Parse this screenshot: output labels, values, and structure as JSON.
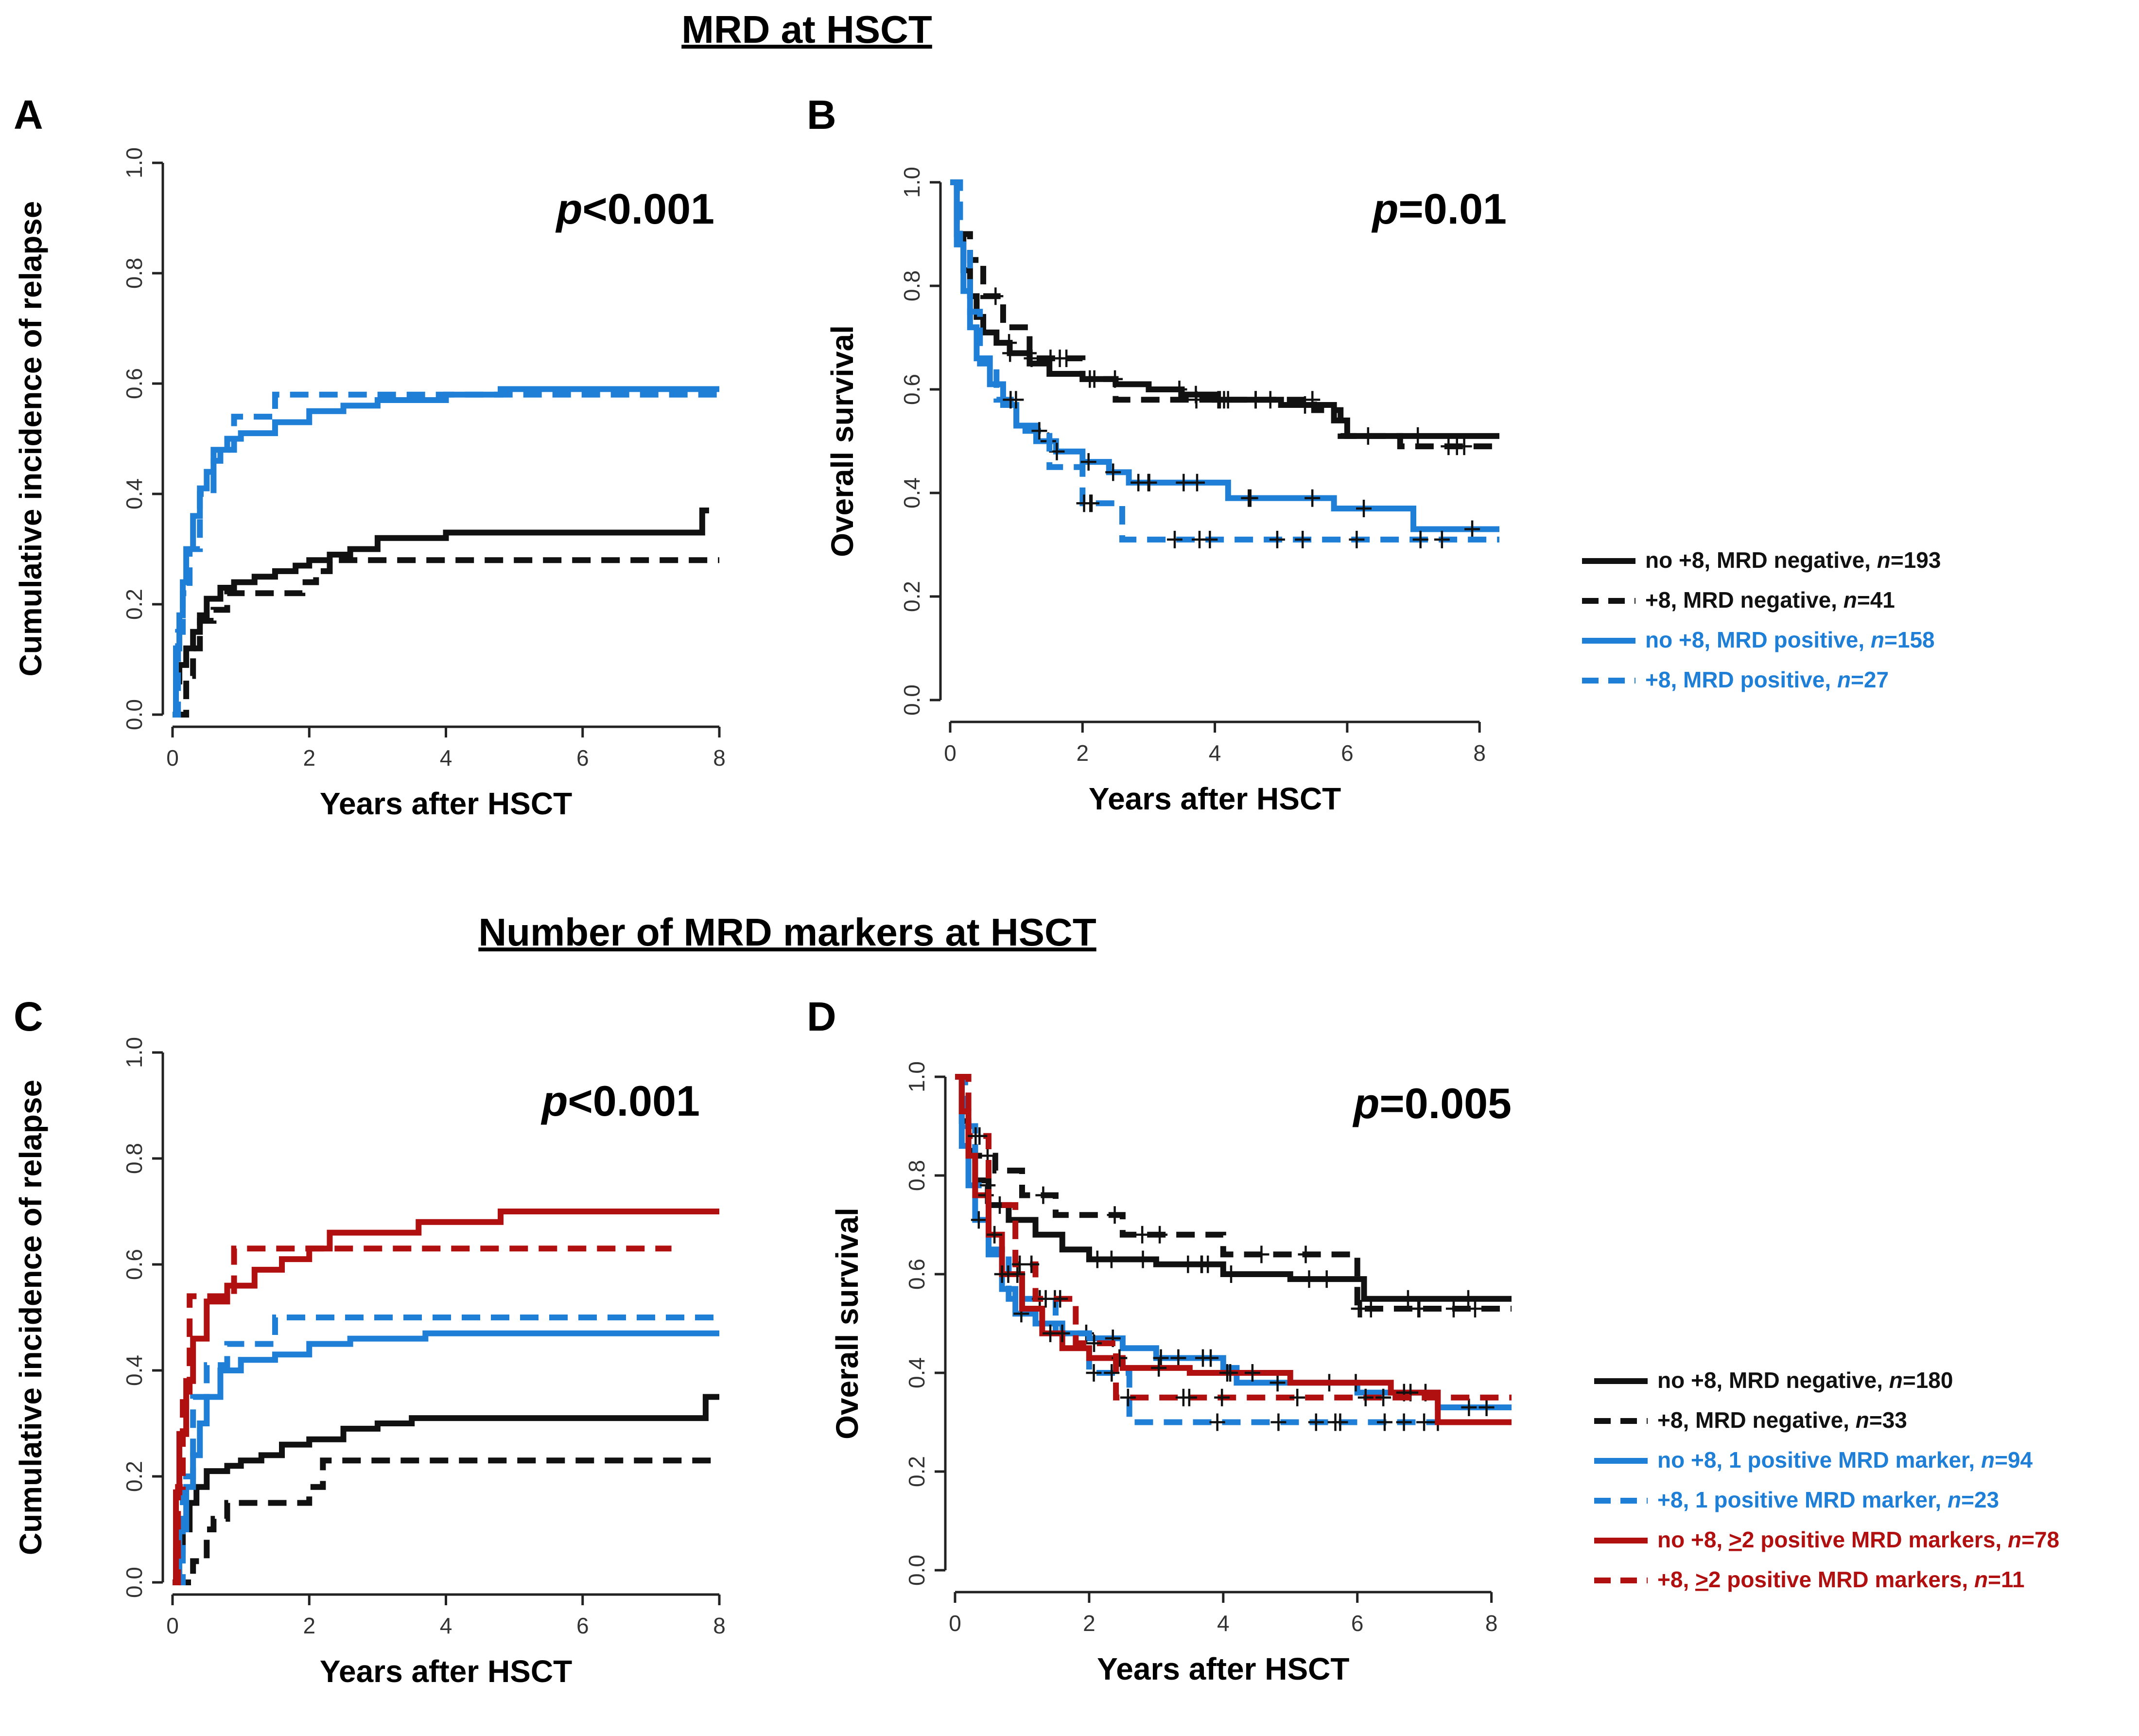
{
  "sections": {
    "top_title": "MRD at HSCT",
    "bottom_title": "Number of MRD markers at HSCT"
  },
  "colors": {
    "black": "#111111",
    "blue": "#1f7fd6",
    "red": "#b01010"
  },
  "legend_top": [
    {
      "parts": [
        "no +8, MRD negative, ",
        "n",
        "=193"
      ],
      "color": "black",
      "dash": false
    },
    {
      "parts": [
        "+8, MRD negative, ",
        "n",
        "=41"
      ],
      "color": "black",
      "dash": true
    },
    {
      "parts": [
        "no +8, MRD positive, ",
        "n",
        "=158"
      ],
      "color": "blue",
      "dash": false
    },
    {
      "parts": [
        "+8, MRD positive, ",
        "n",
        "=27"
      ],
      "color": "blue",
      "dash": true
    }
  ],
  "legend_bottom": [
    {
      "parts": [
        "no +8, MRD negative, ",
        "n",
        "=180"
      ],
      "color": "black",
      "dash": false
    },
    {
      "parts": [
        "+8, MRD negative, ",
        "n",
        "=33"
      ],
      "color": "black",
      "dash": true
    },
    {
      "parts": [
        "no +8, 1 positive MRD marker, ",
        "n",
        "=94"
      ],
      "color": "blue",
      "dash": false
    },
    {
      "parts": [
        "+8, 1 positive MRD marker, ",
        "n",
        "=23"
      ],
      "color": "blue",
      "dash": true
    },
    {
      "parts": [
        "no +8, ",
        ">",
        "2 positive MRD markers, ",
        "n",
        "=78"
      ],
      "color": "red",
      "dash": false
    },
    {
      "parts": [
        "+8, ",
        ">",
        "2 positive MRD markers, ",
        "n",
        "=11"
      ],
      "color": "red",
      "dash": true
    }
  ],
  "chart_data": [
    {
      "panel": "A",
      "type": "line",
      "step": true,
      "xlabel": "Years after HSCT",
      "ylabel": "Cumulative incidence of relapse",
      "pvalue": {
        "italic": "p",
        "rest": "<0.001"
      },
      "xlim": [
        0,
        8
      ],
      "ylim": [
        0,
        1
      ],
      "xticks": [
        "0",
        "2",
        "4",
        "6",
        "8"
      ],
      "yticks": [
        "0.0",
        "0.2",
        "0.4",
        "0.6",
        "0.8",
        "1.0"
      ],
      "series": [
        {
          "name": "no +8, MRD negative",
          "color": "black",
          "dash": false,
          "x": [
            0,
            0.05,
            0.1,
            0.2,
            0.3,
            0.4,
            0.5,
            0.7,
            0.9,
            1.2,
            1.5,
            1.8,
            2.0,
            2.3,
            2.6,
            3.0,
            3.5,
            4.0,
            5.0,
            7.75,
            7.85
          ],
          "y": [
            0,
            0.06,
            0.09,
            0.12,
            0.15,
            0.18,
            0.21,
            0.23,
            0.24,
            0.25,
            0.26,
            0.27,
            0.28,
            0.29,
            0.3,
            0.32,
            0.32,
            0.33,
            0.33,
            0.37,
            0.37
          ]
        },
        {
          "name": "+8, MRD negative",
          "color": "black",
          "dash": true,
          "x": [
            0,
            0.2,
            0.3,
            0.4,
            0.6,
            0.8,
            1.2,
            1.9,
            2.1,
            2.3,
            8.0
          ],
          "y": [
            0,
            0.07,
            0.12,
            0.17,
            0.19,
            0.22,
            0.22,
            0.24,
            0.26,
            0.28,
            0.28
          ]
        },
        {
          "name": "no +8, MRD positive",
          "color": "blue",
          "dash": false,
          "x": [
            0,
            0.05,
            0.1,
            0.15,
            0.2,
            0.3,
            0.4,
            0.5,
            0.6,
            0.7,
            0.8,
            1.0,
            1.5,
            2.0,
            2.5,
            3.0,
            4.0,
            4.8,
            8.0
          ],
          "y": [
            0,
            0.12,
            0.18,
            0.24,
            0.3,
            0.36,
            0.41,
            0.44,
            0.46,
            0.48,
            0.5,
            0.51,
            0.53,
            0.55,
            0.56,
            0.57,
            0.58,
            0.59,
            0.59
          ]
        },
        {
          "name": "+8, MRD positive",
          "color": "blue",
          "dash": true,
          "x": [
            0,
            0.08,
            0.15,
            0.25,
            0.4,
            0.6,
            0.9,
            1.5,
            8.0
          ],
          "y": [
            0,
            0.15,
            0.22,
            0.3,
            0.4,
            0.48,
            0.54,
            0.58,
            0.58
          ]
        }
      ]
    },
    {
      "panel": "B",
      "type": "line",
      "step": true,
      "xlabel": "Years after HSCT",
      "ylabel": "Overall survival",
      "pvalue": {
        "italic": "p",
        "rest": "=0.01"
      },
      "xlim": [
        0,
        8
      ],
      "ylim": [
        0,
        1
      ],
      "xticks": [
        "0",
        "2",
        "4",
        "6",
        "8"
      ],
      "yticks": [
        "0.0",
        "0.2",
        "0.4",
        "0.6",
        "0.8",
        "1.0"
      ],
      "series": [
        {
          "name": "no +8, MRD negative",
          "color": "black",
          "dash": false,
          "x": [
            0,
            0.1,
            0.2,
            0.3,
            0.4,
            0.5,
            0.7,
            0.9,
            1.2,
            1.5,
            2.0,
            2.5,
            3.0,
            3.5,
            4.0,
            5.0,
            5.8,
            6.0,
            8.3
          ],
          "y": [
            1.0,
            0.9,
            0.83,
            0.78,
            0.74,
            0.71,
            0.69,
            0.67,
            0.65,
            0.63,
            0.62,
            0.61,
            0.6,
            0.59,
            0.58,
            0.57,
            0.54,
            0.51,
            0.51
          ]
        },
        {
          "name": "+8, MRD negative",
          "color": "black",
          "dash": true,
          "x": [
            0,
            0.1,
            0.3,
            0.5,
            0.8,
            1.2,
            2.0,
            2.5,
            3.0,
            4.0,
            5.5,
            5.9,
            6.8,
            8.3
          ],
          "y": [
            1.0,
            0.9,
            0.85,
            0.78,
            0.72,
            0.66,
            0.62,
            0.58,
            0.58,
            0.58,
            0.56,
            0.51,
            0.49,
            0.49
          ]
        },
        {
          "name": "no +8, MRD positive",
          "color": "blue",
          "dash": false,
          "x": [
            0,
            0.1,
            0.2,
            0.3,
            0.4,
            0.6,
            0.8,
            1.0,
            1.3,
            1.6,
            2.0,
            2.4,
            2.7,
            4.2,
            5.8,
            7.0,
            8.3
          ],
          "y": [
            1.0,
            0.88,
            0.79,
            0.72,
            0.66,
            0.61,
            0.57,
            0.53,
            0.5,
            0.48,
            0.46,
            0.44,
            0.42,
            0.39,
            0.37,
            0.33,
            0.33
          ]
        },
        {
          "name": "+8, MRD positive",
          "color": "blue",
          "dash": true,
          "x": [
            0,
            0.15,
            0.3,
            0.45,
            0.7,
            1.0,
            1.5,
            2.0,
            2.6,
            8.3
          ],
          "y": [
            1.0,
            0.88,
            0.75,
            0.65,
            0.58,
            0.52,
            0.45,
            0.38,
            0.31,
            0.31
          ]
        }
      ]
    },
    {
      "panel": "C",
      "type": "line",
      "step": true,
      "xlabel": "Years after HSCT",
      "ylabel": "Cumulative incidence of relapse",
      "pvalue": {
        "italic": "p",
        "rest": "<0.001"
      },
      "xlim": [
        0,
        8
      ],
      "ylim": [
        0,
        1
      ],
      "xticks": [
        "0",
        "2",
        "4",
        "6",
        "8"
      ],
      "yticks": [
        "0.0",
        "0.2",
        "0.4",
        "0.6",
        "0.8",
        "1.0"
      ],
      "series": [
        {
          "name": "no +8, MRD negative",
          "color": "black",
          "dash": false,
          "x": [
            0,
            0.05,
            0.15,
            0.25,
            0.35,
            0.5,
            0.8,
            1.0,
            1.3,
            1.6,
            2.0,
            2.5,
            3.0,
            3.5,
            7.7,
            7.8,
            8.0
          ],
          "y": [
            0,
            0.06,
            0.1,
            0.15,
            0.18,
            0.21,
            0.22,
            0.23,
            0.24,
            0.26,
            0.27,
            0.29,
            0.3,
            0.31,
            0.31,
            0.35,
            0.35
          ]
        },
        {
          "name": "+8, MRD negative",
          "color": "black",
          "dash": true,
          "x": [
            0,
            0.3,
            0.5,
            0.6,
            0.8,
            1.6,
            2.0,
            2.2,
            8.0
          ],
          "y": [
            0,
            0.04,
            0.1,
            0.12,
            0.15,
            0.15,
            0.18,
            0.23,
            0.23
          ]
        },
        {
          "name": "no +8, 1 positive MRD marker",
          "color": "blue",
          "dash": false,
          "x": [
            0,
            0.1,
            0.2,
            0.3,
            0.4,
            0.5,
            0.7,
            1.0,
            1.5,
            2.0,
            2.6,
            3.7,
            8.0
          ],
          "y": [
            0,
            0.1,
            0.18,
            0.24,
            0.3,
            0.35,
            0.4,
            0.42,
            0.43,
            0.45,
            0.46,
            0.47,
            0.47
          ]
        },
        {
          "name": "+8, 1 positive MRD marker",
          "color": "blue",
          "dash": true,
          "x": [
            0,
            0.15,
            0.3,
            0.5,
            0.8,
            1.5,
            8.0
          ],
          "y": [
            0,
            0.2,
            0.35,
            0.41,
            0.45,
            0.5,
            0.5
          ]
        },
        {
          "name": "no +8, >2 positive MRD markers",
          "color": "red",
          "dash": false,
          "x": [
            0,
            0.05,
            0.1,
            0.2,
            0.3,
            0.5,
            0.8,
            1.2,
            1.6,
            2.0,
            2.3,
            3.6,
            4.8,
            8.0
          ],
          "y": [
            0,
            0.17,
            0.28,
            0.38,
            0.46,
            0.53,
            0.56,
            0.59,
            0.61,
            0.63,
            0.66,
            0.68,
            0.7,
            0.7
          ]
        },
        {
          "name": "+8, >2 positive MRD markers",
          "color": "red",
          "dash": true,
          "x": [
            0,
            0.08,
            0.15,
            0.25,
            0.9,
            7.3
          ],
          "y": [
            0,
            0.18,
            0.36,
            0.54,
            0.63,
            0.63
          ]
        }
      ]
    },
    {
      "panel": "D",
      "type": "line",
      "step": true,
      "xlabel": "Years after HSCT",
      "ylabel": "Overall survival",
      "pvalue": {
        "italic": "p",
        "rest": "=0.005"
      },
      "xlim": [
        0,
        8
      ],
      "ylim": [
        0,
        1
      ],
      "xticks": [
        "0",
        "2",
        "4",
        "6",
        "8"
      ],
      "yticks": [
        "0.0",
        "0.2",
        "0.4",
        "0.6",
        "0.8",
        "1.0"
      ],
      "series": [
        {
          "name": "no +8, MRD negative",
          "color": "black",
          "dash": false,
          "x": [
            0,
            0.1,
            0.2,
            0.3,
            0.5,
            0.8,
            1.2,
            1.6,
            2.0,
            3.0,
            4.0,
            5.0,
            5.9,
            6.1,
            8.3
          ],
          "y": [
            1.0,
            0.91,
            0.85,
            0.79,
            0.74,
            0.71,
            0.68,
            0.65,
            0.63,
            0.62,
            0.6,
            0.59,
            0.59,
            0.55,
            0.55
          ]
        },
        {
          "name": "+8, MRD negative",
          "color": "black",
          "dash": true,
          "x": [
            0,
            0.15,
            0.3,
            0.6,
            1.0,
            1.5,
            2.5,
            4.0,
            5.9,
            6.0,
            8.3
          ],
          "y": [
            1.0,
            0.9,
            0.84,
            0.81,
            0.76,
            0.72,
            0.68,
            0.64,
            0.64,
            0.53,
            0.53
          ]
        },
        {
          "name": "no +8, 1 positive MRD marker",
          "color": "blue",
          "dash": false,
          "x": [
            0,
            0.1,
            0.2,
            0.3,
            0.5,
            0.7,
            0.9,
            1.2,
            1.6,
            2.0,
            2.5,
            3.0,
            4.0,
            4.2,
            6.0,
            7.2,
            8.3
          ],
          "y": [
            1.0,
            0.86,
            0.78,
            0.71,
            0.64,
            0.57,
            0.52,
            0.5,
            0.48,
            0.47,
            0.45,
            0.43,
            0.41,
            0.38,
            0.36,
            0.33,
            0.33
          ]
        },
        {
          "name": "+8, 1 positive MRD marker",
          "color": "blue",
          "dash": true,
          "x": [
            0,
            0.15,
            0.3,
            0.5,
            0.8,
            1.5,
            2.0,
            2.6,
            8.3
          ],
          "y": [
            1.0,
            0.9,
            0.78,
            0.65,
            0.55,
            0.48,
            0.4,
            0.3,
            0.3
          ]
        },
        {
          "name": "no +8, >2 positive MRD markers",
          "color": "red",
          "dash": false,
          "x": [
            0,
            0.1,
            0.2,
            0.3,
            0.5,
            0.7,
            1.0,
            1.3,
            1.6,
            2.0,
            2.5,
            3.5,
            5.0,
            6.5,
            7.2,
            8.3
          ],
          "y": [
            1.0,
            0.93,
            0.84,
            0.76,
            0.68,
            0.6,
            0.53,
            0.48,
            0.45,
            0.43,
            0.41,
            0.4,
            0.38,
            0.36,
            0.3,
            0.3
          ]
        },
        {
          "name": "+8, >2 positive MRD markers",
          "color": "red",
          "dash": true,
          "x": [
            0,
            0.2,
            0.5,
            0.9,
            1.2,
            1.8,
            2.4,
            8.3
          ],
          "y": [
            1.0,
            0.88,
            0.74,
            0.62,
            0.55,
            0.46,
            0.35,
            0.35
          ]
        }
      ]
    }
  ]
}
